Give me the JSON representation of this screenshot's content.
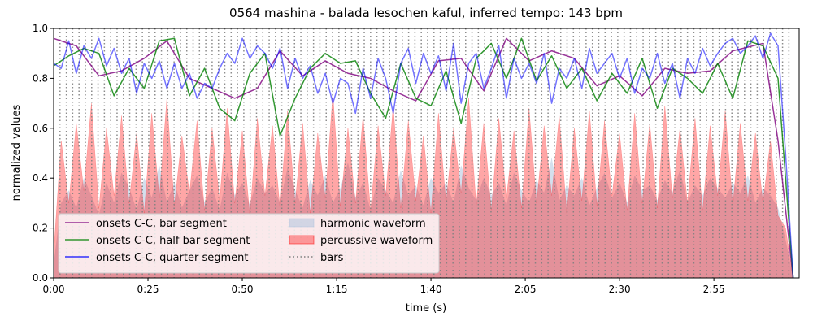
{
  "chart_data": {
    "type": "line",
    "title": "0564 mashina - balada lesochen kaful, inferred tempo: 143 bpm",
    "xlabel": "time (s)",
    "ylabel": "normalized values",
    "xlim": [
      0,
      197.6
    ],
    "ylim": [
      0,
      1
    ],
    "xticks": [
      {
        "value": 0,
        "label": "0:00"
      },
      {
        "value": 25,
        "label": "0:25"
      },
      {
        "value": 50,
        "label": "0:50"
      },
      {
        "value": 75,
        "label": "1:15"
      },
      {
        "value": 100,
        "label": "1:40"
      },
      {
        "value": 125,
        "label": "2:05"
      },
      {
        "value": 150,
        "label": "2:30"
      },
      {
        "value": 175,
        "label": "2:55"
      }
    ],
    "yticks": [
      {
        "value": 0,
        "label": "0.0"
      },
      {
        "value": 0.2,
        "label": "0.2"
      },
      {
        "value": 0.4,
        "label": "0.4"
      },
      {
        "value": 0.6,
        "label": "0.6"
      },
      {
        "value": 0.8,
        "label": "0.8"
      },
      {
        "value": 1,
        "label": "1.0"
      }
    ],
    "legend_position": "lower left",
    "x": [
      0,
      2,
      4,
      6,
      8,
      10,
      12,
      14,
      16,
      18,
      20,
      22,
      24,
      26,
      28,
      30,
      32,
      34,
      36,
      38,
      40,
      42,
      44,
      46,
      48,
      50,
      52,
      54,
      56,
      58,
      60,
      62,
      64,
      66,
      68,
      70,
      72,
      74,
      76,
      78,
      80,
      82,
      84,
      86,
      88,
      90,
      92,
      94,
      96,
      98,
      100,
      102,
      104,
      106,
      108,
      110,
      112,
      114,
      116,
      118,
      120,
      122,
      124,
      126,
      128,
      130,
      132,
      134,
      136,
      138,
      140,
      142,
      144,
      146,
      148,
      150,
      152,
      154,
      156,
      158,
      160,
      162,
      164,
      166,
      168,
      170,
      172,
      174,
      176,
      178,
      180,
      182,
      184,
      186,
      188,
      190,
      192,
      194,
      196
    ],
    "series": [
      {
        "name": "onsets C-C, bar segment",
        "kind": "line",
        "color": "#800080",
        "x": [
          0,
          6,
          12,
          18,
          24,
          30,
          36,
          42,
          48,
          54,
          60,
          66,
          72,
          78,
          84,
          90,
          96,
          102,
          108,
          114,
          120,
          126,
          132,
          138,
          144,
          150,
          156,
          162,
          168,
          174,
          180,
          188,
          192,
          196
        ],
        "values": [
          0.96,
          0.93,
          0.81,
          0.83,
          0.88,
          0.95,
          0.8,
          0.76,
          0.72,
          0.76,
          0.91,
          0.81,
          0.87,
          0.82,
          0.8,
          0.75,
          0.71,
          0.87,
          0.88,
          0.75,
          0.96,
          0.87,
          0.91,
          0.88,
          0.77,
          0.81,
          0.73,
          0.84,
          0.82,
          0.83,
          0.91,
          0.94,
          0.55,
          0
        ]
      },
      {
        "name": "onsets C-C, half bar segment",
        "kind": "line",
        "color": "#008000",
        "x": [
          0,
          4,
          8,
          12,
          16,
          20,
          24,
          28,
          32,
          36,
          40,
          44,
          48,
          52,
          56,
          60,
          64,
          68,
          72,
          76,
          80,
          84,
          88,
          92,
          96,
          100,
          104,
          108,
          112,
          116,
          120,
          124,
          128,
          132,
          136,
          140,
          144,
          148,
          152,
          156,
          160,
          164,
          168,
          172,
          176,
          180,
          184,
          188,
          192,
          196
        ],
        "values": [
          0.85,
          0.89,
          0.92,
          0.9,
          0.73,
          0.84,
          0.76,
          0.95,
          0.96,
          0.73,
          0.84,
          0.68,
          0.63,
          0.82,
          0.9,
          0.57,
          0.72,
          0.84,
          0.9,
          0.86,
          0.87,
          0.74,
          0.64,
          0.86,
          0.72,
          0.69,
          0.83,
          0.62,
          0.88,
          0.94,
          0.8,
          0.96,
          0.79,
          0.89,
          0.76,
          0.84,
          0.71,
          0.82,
          0.74,
          0.88,
          0.68,
          0.84,
          0.8,
          0.74,
          0.86,
          0.72,
          0.95,
          0.93,
          0.8,
          0
        ]
      },
      {
        "name": "onsets C-C, quarter segment",
        "kind": "line",
        "color": "#0000ff",
        "values": [
          0.86,
          0.84,
          0.95,
          0.82,
          0.93,
          0.88,
          0.96,
          0.85,
          0.92,
          0.82,
          0.88,
          0.74,
          0.86,
          0.8,
          0.87,
          0.76,
          0.86,
          0.76,
          0.82,
          0.72,
          0.78,
          0.76,
          0.84,
          0.9,
          0.86,
          0.96,
          0.88,
          0.93,
          0.9,
          0.84,
          0.92,
          0.76,
          0.88,
          0.8,
          0.85,
          0.74,
          0.82,
          0.7,
          0.8,
          0.78,
          0.66,
          0.84,
          0.72,
          0.88,
          0.8,
          0.66,
          0.86,
          0.92,
          0.78,
          0.9,
          0.82,
          0.89,
          0.75,
          0.94,
          0.7,
          0.86,
          0.9,
          0.76,
          0.84,
          0.93,
          0.72,
          0.88,
          0.8,
          0.86,
          0.78,
          0.9,
          0.7,
          0.84,
          0.8,
          0.88,
          0.76,
          0.92,
          0.82,
          0.86,
          0.9,
          0.8,
          0.88,
          0.74,
          0.84,
          0.8,
          0.9,
          0.78,
          0.86,
          0.72,
          0.88,
          0.82,
          0.92,
          0.85,
          0.9,
          0.94,
          0.96,
          0.9,
          0.93,
          0.97,
          0.88,
          0.98,
          0.93,
          0.5,
          0
        ]
      },
      {
        "name": "harmonic waveform",
        "kind": "area",
        "color": "#b0c4de",
        "values": [
          0.05,
          0.3,
          0.35,
          0.28,
          0.4,
          0.33,
          0.25,
          0.38,
          0.3,
          0.42,
          0.36,
          0.27,
          0.4,
          0.32,
          0.45,
          0.3,
          0.38,
          0.28,
          0.35,
          0.41,
          0.3,
          0.36,
          0.27,
          0.42,
          0.33,
          0.38,
          0.29,
          0.4,
          0.34,
          0.37,
          0.3,
          0.44,
          0.35,
          0.28,
          0.39,
          0.33,
          0.41,
          0.3,
          0.36,
          0.46,
          0.32,
          0.38,
          0.27,
          0.4,
          0.35,
          0.3,
          0.43,
          0.33,
          0.37,
          0.29,
          0.4,
          0.34,
          0.38,
          0.3,
          0.45,
          0.36,
          0.31,
          0.4,
          0.33,
          0.38,
          0.29,
          0.42,
          0.35,
          0.3,
          0.39,
          0.34,
          0.48,
          0.31,
          0.37,
          0.33,
          0.4,
          0.29,
          0.36,
          0.42,
          0.32,
          0.38,
          0.3,
          0.41,
          0.35,
          0.37,
          0.31,
          0.39,
          0.34,
          0.43,
          0.3,
          0.37,
          0.33,
          0.4,
          0.36,
          0.32,
          0.38,
          0.34,
          0.41,
          0.3,
          0.36,
          0.33,
          0.28,
          0.15,
          0
        ]
      },
      {
        "name": "percussive waveform",
        "kind": "area",
        "color": "#ff0000",
        "values": [
          0.1,
          0.55,
          0.3,
          0.62,
          0.35,
          0.7,
          0.28,
          0.6,
          0.33,
          0.65,
          0.3,
          0.58,
          0.26,
          0.66,
          0.32,
          0.72,
          0.29,
          0.57,
          0.34,
          0.63,
          0.27,
          0.6,
          0.31,
          0.68,
          0.3,
          0.59,
          0.25,
          0.64,
          0.33,
          0.61,
          0.28,
          0.67,
          0.3,
          0.62,
          0.26,
          0.58,
          0.32,
          0.74,
          0.29,
          0.6,
          0.3,
          0.65,
          0.27,
          0.61,
          0.33,
          0.69,
          0.28,
          0.63,
          0.31,
          0.57,
          0.26,
          0.66,
          0.3,
          0.6,
          0.34,
          0.72,
          0.29,
          0.62,
          0.27,
          0.64,
          0.32,
          0.59,
          0.28,
          0.68,
          0.3,
          0.61,
          0.33,
          0.65,
          0.26,
          0.6,
          0.31,
          0.67,
          0.29,
          0.63,
          0.33,
          0.58,
          0.27,
          0.66,
          0.3,
          0.62,
          0.28,
          0.69,
          0.32,
          0.6,
          0.3,
          0.64,
          0.27,
          0.61,
          0.33,
          0.67,
          0.29,
          0.62,
          0.31,
          0.58,
          0.3,
          0.55,
          0.25,
          0.2,
          0
        ]
      },
      {
        "name": "bars",
        "kind": "vlines",
        "color": "#808080",
        "x": [
          0,
          1.68,
          3.36,
          5.04,
          6.72,
          8.4,
          10.08,
          11.76,
          13.44,
          15.12,
          16.8,
          18.48,
          20.16,
          21.84,
          23.52,
          25.2,
          26.88,
          28.56,
          30.24,
          31.92,
          33.6,
          35.28,
          36.96,
          38.64,
          40.32,
          42,
          43.68,
          45.36,
          47.04,
          48.72,
          50.4,
          52.08,
          53.76,
          55.44,
          57.12,
          58.8,
          60.48,
          62.16,
          63.84,
          65.52,
          67.2,
          68.88,
          70.56,
          72.24,
          73.92,
          75.6,
          77.28,
          78.96,
          80.64,
          82.32,
          84,
          85.68,
          87.36,
          89.04,
          90.72,
          92.4,
          94.08,
          95.76,
          97.44,
          99.12,
          100.8,
          102.48,
          104.16,
          105.84,
          107.52,
          109.2,
          110.88,
          112.56,
          114.24,
          115.92,
          117.6,
          119.28,
          120.96,
          122.64,
          124.32,
          126,
          127.68,
          129.36,
          131.04,
          132.72,
          134.4,
          136.08,
          137.76,
          139.44,
          141.12,
          142.8,
          144.48,
          146.16,
          147.84,
          149.52,
          151.2,
          152.88,
          154.56,
          156.24,
          157.92,
          159.6,
          161.28,
          162.96,
          164.64,
          166.32,
          168,
          169.68,
          171.36,
          173.04,
          174.72,
          176.4,
          178.08,
          179.76,
          181.44,
          183.12,
          184.8,
          186.48,
          188.16,
          189.84,
          191.52,
          193.2,
          194.88
        ]
      }
    ]
  }
}
